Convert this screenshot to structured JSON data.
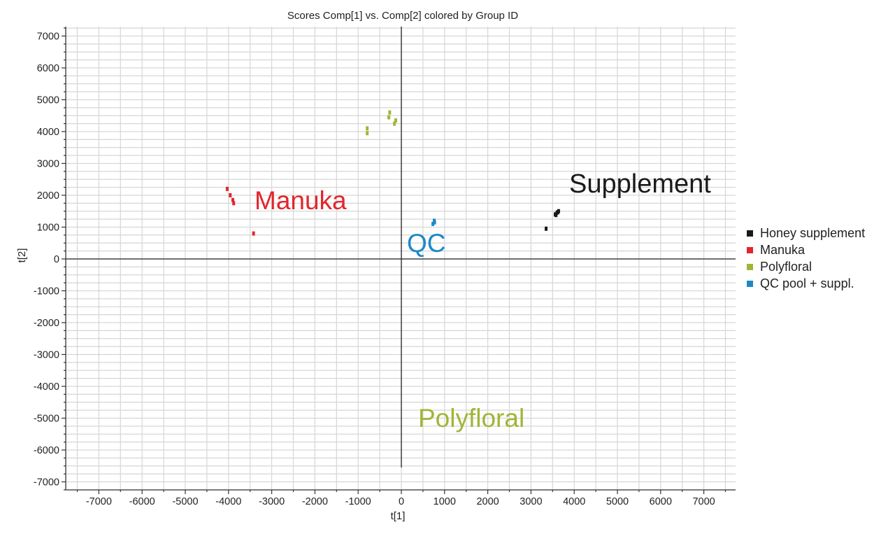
{
  "chart_data": {
    "type": "scatter",
    "title": "Scores Comp[1] vs. Comp[2] colored by Group ID",
    "xlabel": "t[1]",
    "ylabel": "t[2]",
    "xlim": [
      -7800,
      7800
    ],
    "ylim": [
      -7400,
      7400
    ],
    "xticks": [
      -7000,
      -6000,
      -5000,
      -4000,
      -3000,
      -2000,
      -1000,
      0,
      1000,
      2000,
      3000,
      4000,
      5000,
      6000,
      7000
    ],
    "yticks": [
      7000,
      6000,
      5000,
      4000,
      3000,
      2000,
      1000,
      0,
      -1000,
      -2000,
      -3000,
      -4000,
      -5000,
      -6000,
      -7000
    ],
    "grid": true,
    "legend_position": "right",
    "series": [
      {
        "name": "Honey supplement",
        "color": "#1a1a1a",
        "label": "Supplement",
        "points": [
          [
            3350,
            950
          ],
          [
            3560,
            1400
          ],
          [
            3600,
            1450
          ],
          [
            3640,
            1500
          ],
          [
            3580,
            1380
          ],
          [
            3620,
            1470
          ]
        ]
      },
      {
        "name": "Manuka",
        "color": "#e3262d",
        "label": "Manuka",
        "points": [
          [
            -4030,
            2200
          ],
          [
            -3960,
            2000
          ],
          [
            -3900,
            1850
          ],
          [
            -3880,
            1750
          ],
          [
            -3420,
            800
          ]
        ]
      },
      {
        "name": "Polyfloral",
        "color": "#a1b536",
        "label": "Polyfloral",
        "points": [
          [
            -790,
            3950
          ],
          [
            -790,
            4100
          ],
          [
            -290,
            4450
          ],
          [
            -270,
            4600
          ],
          [
            -160,
            4250
          ],
          [
            -130,
            4350
          ]
        ]
      },
      {
        "name": "QC pool + suppl.",
        "color": "#1e88c6",
        "label": "QC",
        "points": [
          [
            730,
            1100
          ],
          [
            760,
            1200
          ],
          [
            770,
            1150
          ]
        ]
      }
    ]
  }
}
